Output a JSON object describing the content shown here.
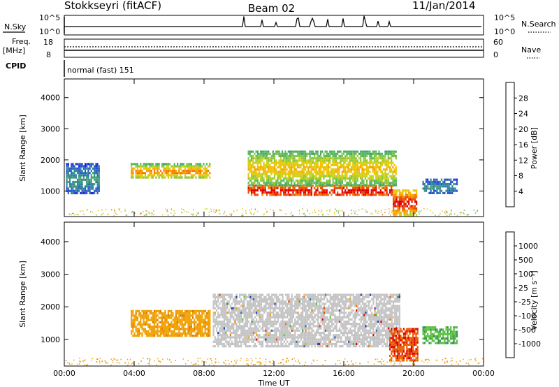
{
  "header": {
    "radar_title": "Stokkseyri (fitACF)",
    "beam": "Beam 02",
    "date": "11/Jan/2014"
  },
  "aux_panels": {
    "nsky_label": "N.Sky",
    "nsky_ticks": [
      "10^5",
      "10^0"
    ],
    "nsearch_label": "N.Search",
    "nsearch_ticks": [
      "10^5",
      "10^0"
    ],
    "freq_label": "Freq.",
    "freq_unit": "[MHz]",
    "freq_ticks": [
      "18",
      "8"
    ],
    "nave_label": "Nave",
    "nave_ticks": [
      "60",
      "0"
    ],
    "cpid_label": "CPID",
    "cpid_value": "normal (fast) 151"
  },
  "colors": {
    "power_scale": [
      "#1f1fe6",
      "#2b58c8",
      "#2f82a0",
      "#43a070",
      "#55b75a",
      "#8cc63e",
      "#c8d21a",
      "#f2c200",
      "#f7a000",
      "#f47a00",
      "#ee4a00",
      "#e20000"
    ],
    "velocity_scale": [
      "#1f3fbf",
      "#2f6fae",
      "#3a8f5a",
      "#58c23a",
      "#c0c0c0",
      "#c0c0c0",
      "#f0a000",
      "#f07800",
      "#ea4a00",
      "#dd0000"
    ],
    "bg": "#ffffff"
  },
  "chart_data": [
    {
      "type": "heatmap",
      "name": "power",
      "ylabel": "Slant Range [km]",
      "yticks": [
        "1000",
        "2000",
        "3000",
        "4000"
      ],
      "ylim": [
        180,
        4600
      ],
      "xlim": [
        0,
        24
      ],
      "xticks": [
        "00:00",
        "04:00",
        "08:00",
        "12:00",
        "16:00",
        "20:00",
        "00:00"
      ],
      "colorbar": {
        "label": "Power [dB]",
        "ticks": [
          "4",
          "8",
          "12",
          "16",
          "20",
          "24",
          "28"
        ],
        "range": [
          0,
          30
        ]
      },
      "regions": [
        {
          "t0": 3.8,
          "t1": 8.3,
          "r0": 1400,
          "r1": 1900,
          "vmin": 8,
          "vmax": 24
        },
        {
          "t0": 10.5,
          "t1": 18.8,
          "r0": 850,
          "r1": 1200,
          "vmin": 22,
          "vmax": 30
        },
        {
          "t0": 10.5,
          "t1": 19.0,
          "r0": 1200,
          "r1": 2300,
          "vmin": 8,
          "vmax": 20
        },
        {
          "t0": 18.8,
          "t1": 20.2,
          "r0": 250,
          "r1": 1050,
          "vmin": 14,
          "vmax": 30
        },
        {
          "t0": 0.1,
          "t1": 2.0,
          "r0": 900,
          "r1": 1900,
          "vmin": 2,
          "vmax": 8
        },
        {
          "t0": 20.5,
          "t1": 22.5,
          "r0": 900,
          "r1": 1400,
          "vmin": 2,
          "vmax": 8
        }
      ]
    },
    {
      "type": "heatmap",
      "name": "velocity",
      "ylabel": "Slant Range [km]",
      "yticks": [
        "1000",
        "2000",
        "3000",
        "4000"
      ],
      "ylim": [
        180,
        4600
      ],
      "xlim": [
        0,
        24
      ],
      "xticks": [
        "00:00",
        "04:00",
        "08:00",
        "12:00",
        "16:00",
        "20:00",
        "00:00"
      ],
      "xlabel": "Time UT",
      "colorbar": {
        "label": "Velocity [m s⁻¹]",
        "ticks": [
          "1000",
          "500",
          "100",
          "25",
          "-25",
          "-100",
          "-500",
          "-1000"
        ]
      },
      "regions": [
        {
          "t0": 3.8,
          "t1": 8.3,
          "r0": 1100,
          "r1": 1900,
          "v": -100
        },
        {
          "t0": 8.5,
          "t1": 19.2,
          "r0": 800,
          "r1": 2400,
          "v": 0
        },
        {
          "t0": 18.6,
          "t1": 20.2,
          "r0": 350,
          "r1": 1350,
          "v": -500
        },
        {
          "t0": 20.5,
          "t1": 22.5,
          "r0": 900,
          "r1": 1400,
          "v": 100
        }
      ]
    }
  ]
}
